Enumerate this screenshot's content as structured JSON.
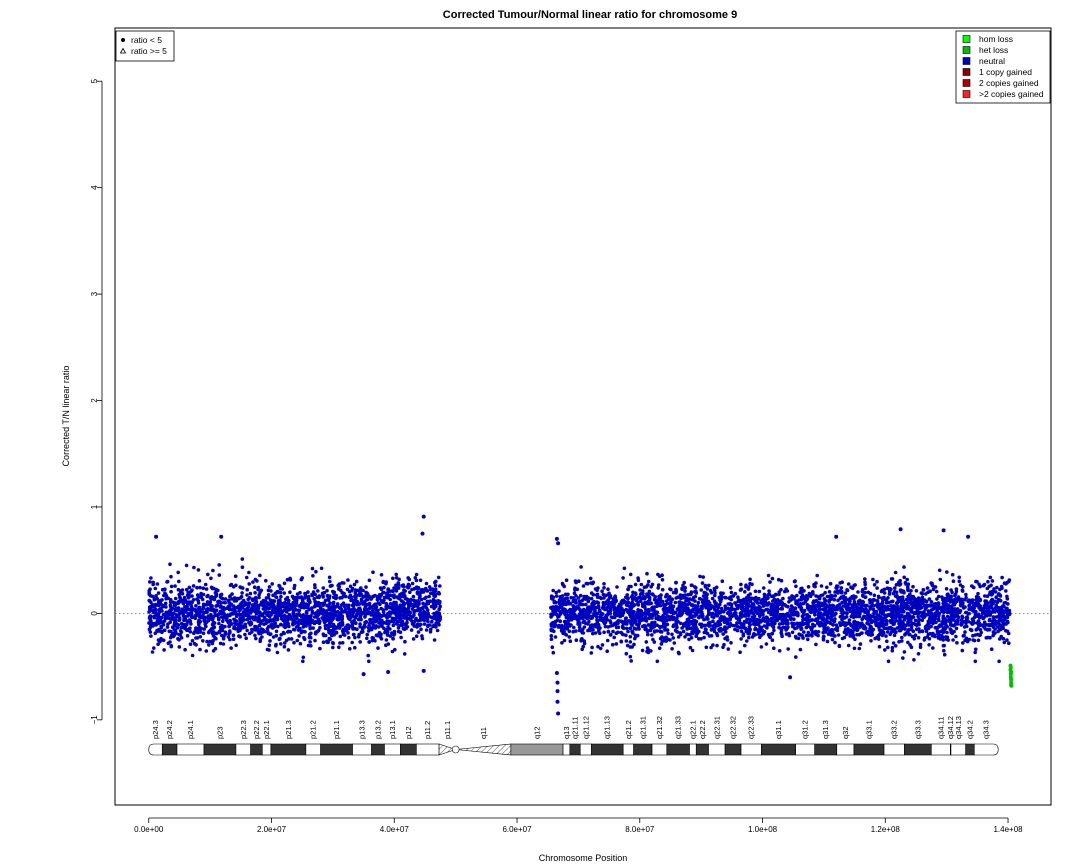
{
  "chart_data": {
    "type": "scatter",
    "title": "Corrected Tumour/Normal linear ratio for chromosome  9",
    "xlabel": "Chromosome Position",
    "ylabel": "Corrected T/N linear ratio",
    "xlim": [
      -5500000,
      147000000
    ],
    "ylim": [
      -1.8,
      5.5
    ],
    "x_ticks": [
      0,
      20000000,
      40000000,
      60000000,
      80000000,
      100000000,
      120000000,
      140000000
    ],
    "x_tick_labels": [
      "0.0e+00",
      "2.0e+07",
      "4.0e+07",
      "6.0e+07",
      "8.0e+07",
      "1.0e+08",
      "1.2e+08",
      "1.4e+08"
    ],
    "y_ticks": [
      -1,
      0,
      1,
      2,
      3,
      4,
      5
    ],
    "y_tick_labels": [
      "−1",
      "0",
      "1",
      "2",
      "3",
      "4",
      "5"
    ],
    "reference_line": 0,
    "series": [
      {
        "name": "neutral",
        "color": "#0000c0",
        "ranges": [
          {
            "x_start": 0,
            "x_end": 40000000,
            "y_mean": 0.0,
            "y_sd": 0.14
          },
          {
            "x_start": 40000000,
            "x_end": 47500000,
            "y_mean": 0.05,
            "y_sd": 0.14
          },
          {
            "x_start": 65500000,
            "x_end": 140300000,
            "y_mean": 0.0,
            "y_sd": 0.14
          }
        ],
        "outliers": [
          [
            44800000,
            0.91
          ],
          [
            44600000,
            0.75
          ],
          [
            1200000,
            0.72
          ],
          [
            11800000,
            0.72
          ],
          [
            122500000,
            0.79
          ],
          [
            129500000,
            0.78
          ],
          [
            112000000,
            0.72
          ],
          [
            133500000,
            0.72
          ],
          [
            66500000,
            0.7
          ],
          [
            66700000,
            0.66
          ],
          [
            66600000,
            -0.65
          ],
          [
            66600000,
            -0.73
          ],
          [
            66600000,
            -0.83
          ],
          [
            66700000,
            -0.94
          ],
          [
            66500000,
            -0.56
          ],
          [
            39000000,
            -0.55
          ],
          [
            44800000,
            -0.54
          ],
          [
            35000000,
            -0.57
          ],
          [
            104500000,
            -0.6
          ]
        ]
      },
      {
        "name": "het loss",
        "color": "#00bf00",
        "points": [
          [
            140400000,
            -0.49
          ],
          [
            140400000,
            -0.53
          ],
          [
            140450000,
            -0.57
          ],
          [
            140450000,
            -0.6
          ],
          [
            140500000,
            -0.62
          ],
          [
            140500000,
            -0.65
          ],
          [
            140500000,
            -0.67
          ],
          [
            140550000,
            -0.68
          ],
          [
            140450000,
            -0.51
          ],
          [
            140500000,
            -0.55
          ]
        ]
      }
    ],
    "point_legend": {
      "position": "top-left",
      "entries": [
        {
          "label": "ratio < 5",
          "symbol": "filled-circle"
        },
        {
          "label": "ratio >= 5",
          "symbol": "open-triangle"
        }
      ]
    },
    "legend": {
      "position": "top-right",
      "entries": [
        {
          "label": "hom loss",
          "color": "#00ff00"
        },
        {
          "label": "het loss",
          "color": "#00bf00"
        },
        {
          "label": "neutral",
          "color": "#0000c0"
        },
        {
          "label": "1 copy gained",
          "color": "#8b0000"
        },
        {
          "label": "2 copies gained",
          "color": "#b00000"
        },
        {
          "label": ">2 copies gained",
          "color": "#ff2020"
        }
      ]
    },
    "ideogram": {
      "chromosome": "9",
      "centromere": 50000000,
      "bands": [
        {
          "name": "p24.3",
          "start": 0,
          "end": 2200000,
          "stain": "gneg"
        },
        {
          "name": "p24.2",
          "start": 2200000,
          "end": 4600000,
          "stain": "gpos"
        },
        {
          "name": "p24.1",
          "start": 4600000,
          "end": 9000000,
          "stain": "gneg"
        },
        {
          "name": "p23",
          "start": 9000000,
          "end": 14200000,
          "stain": "gpos"
        },
        {
          "name": "p22.3",
          "start": 14200000,
          "end": 16600000,
          "stain": "gneg"
        },
        {
          "name": "p22.2",
          "start": 16600000,
          "end": 18500000,
          "stain": "gpos"
        },
        {
          "name": "p22.1",
          "start": 18500000,
          "end": 19900000,
          "stain": "gneg"
        },
        {
          "name": "p21.3",
          "start": 19900000,
          "end": 25600000,
          "stain": "gpos"
        },
        {
          "name": "p21.2",
          "start": 25600000,
          "end": 28000000,
          "stain": "gneg"
        },
        {
          "name": "p21.1",
          "start": 28000000,
          "end": 33200000,
          "stain": "gpos"
        },
        {
          "name": "p13.3",
          "start": 33200000,
          "end": 36300000,
          "stain": "gneg"
        },
        {
          "name": "p13.2",
          "start": 36300000,
          "end": 38400000,
          "stain": "gpos"
        },
        {
          "name": "p13.1",
          "start": 38400000,
          "end": 41000000,
          "stain": "gneg"
        },
        {
          "name": "p12",
          "start": 41000000,
          "end": 43600000,
          "stain": "gpos"
        },
        {
          "name": "p11.2",
          "start": 43600000,
          "end": 47300000,
          "stain": "gneg"
        },
        {
          "name": "p11.1",
          "start": 47300000,
          "end": 50000000,
          "stain": "acen"
        },
        {
          "name": "q11",
          "start": 50000000,
          "end": 59000000,
          "stain": "acen"
        },
        {
          "name": "q12",
          "start": 59000000,
          "end": 67500000,
          "stain": "gvar"
        },
        {
          "name": "q13",
          "start": 67500000,
          "end": 68600000,
          "stain": "gneg"
        },
        {
          "name": "q21.11",
          "start": 68600000,
          "end": 70300000,
          "stain": "gpos"
        },
        {
          "name": "q21.12",
          "start": 70300000,
          "end": 72100000,
          "stain": "gneg"
        },
        {
          "name": "q21.13",
          "start": 72100000,
          "end": 77300000,
          "stain": "gpos"
        },
        {
          "name": "q21.2",
          "start": 77300000,
          "end": 79000000,
          "stain": "gneg"
        },
        {
          "name": "q21.31",
          "start": 79000000,
          "end": 82000000,
          "stain": "gpos"
        },
        {
          "name": "q21.32",
          "start": 82000000,
          "end": 84400000,
          "stain": "gneg"
        },
        {
          "name": "q21.33",
          "start": 84400000,
          "end": 88100000,
          "stain": "gpos"
        },
        {
          "name": "q22.1",
          "start": 88100000,
          "end": 89200000,
          "stain": "gneg"
        },
        {
          "name": "q22.2",
          "start": 89200000,
          "end": 91200000,
          "stain": "gpos"
        },
        {
          "name": "q22.31",
          "start": 91200000,
          "end": 93900000,
          "stain": "gneg"
        },
        {
          "name": "q22.32",
          "start": 93900000,
          "end": 96500000,
          "stain": "gpos"
        },
        {
          "name": "q22.33",
          "start": 96500000,
          "end": 99800000,
          "stain": "gneg"
        },
        {
          "name": "q31.1",
          "start": 99800000,
          "end": 105400000,
          "stain": "gpos"
        },
        {
          "name": "q31.2",
          "start": 105400000,
          "end": 108500000,
          "stain": "gneg"
        },
        {
          "name": "q31.3",
          "start": 108500000,
          "end": 112100000,
          "stain": "gpos"
        },
        {
          "name": "q32",
          "start": 112100000,
          "end": 114900000,
          "stain": "gneg"
        },
        {
          "name": "q33.1",
          "start": 114900000,
          "end": 119800000,
          "stain": "gpos"
        },
        {
          "name": "q33.2",
          "start": 119800000,
          "end": 123100000,
          "stain": "gneg"
        },
        {
          "name": "q33.3",
          "start": 123100000,
          "end": 127500000,
          "stain": "gpos"
        },
        {
          "name": "q34.11",
          "start": 127500000,
          "end": 130600000,
          "stain": "gneg"
        },
        {
          "name": "q34.12",
          "start": 130600000,
          "end": 130700000,
          "stain": "gpos"
        },
        {
          "name": "q34.13",
          "start": 130700000,
          "end": 133100000,
          "stain": "gneg"
        },
        {
          "name": "q34.2",
          "start": 133100000,
          "end": 134500000,
          "stain": "gpos"
        },
        {
          "name": "q34.3",
          "start": 134500000,
          "end": 138400000,
          "stain": "gneg"
        }
      ]
    }
  }
}
